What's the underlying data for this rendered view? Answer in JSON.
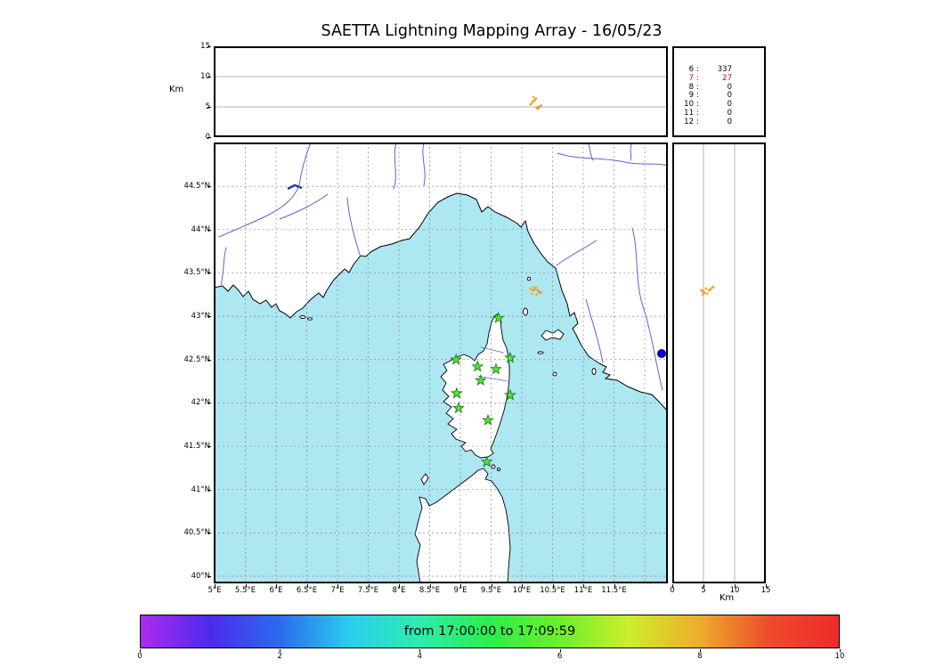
{
  "title": "SAETTA Lightning Mapping Array - 16/05/23",
  "colors": {
    "sea": "#ace7f2",
    "land": "#ffffff",
    "station_fill": "#55e62e",
    "station_edge": "#157015",
    "river": "#6b5bd2",
    "lake": "#0000bb",
    "grid": "#8a8a8a",
    "highlight": "#cc0000"
  },
  "top_panel": {
    "ylabel": "Km",
    "yticks": [
      {
        "label": "0",
        "value": 0
      },
      {
        "label": "5",
        "value": 5
      },
      {
        "label": "10",
        "value": 10
      },
      {
        "label": "15",
        "value": 15
      }
    ]
  },
  "station_counts": {
    "rows": [
      {
        "label": "6",
        "value": "337",
        "highlight": false
      },
      {
        "label": "7",
        "value": "27",
        "highlight": true
      },
      {
        "label": "8",
        "value": "0",
        "highlight": false
      },
      {
        "label": "9",
        "value": "0",
        "highlight": false
      },
      {
        "label": "10",
        "value": "0",
        "highlight": false
      },
      {
        "label": "11",
        "value": "0",
        "highlight": false
      },
      {
        "label": "12",
        "value": "0",
        "highlight": false
      }
    ]
  },
  "map_panel": {
    "lat_ticks": [
      {
        "label": "44.5°N",
        "value": 44.5
      },
      {
        "label": "44°N",
        "value": 44
      },
      {
        "label": "43.5°N",
        "value": 43.5
      },
      {
        "label": "43°N",
        "value": 43
      },
      {
        "label": "42.5°N",
        "value": 42.5
      },
      {
        "label": "42°N",
        "value": 42
      },
      {
        "label": "41.5°N",
        "value": 41.5
      },
      {
        "label": "41°N",
        "value": 41
      },
      {
        "label": "40.5°N",
        "value": 40.5
      },
      {
        "label": "40°N",
        "value": 40
      }
    ],
    "lon_ticks": [
      {
        "label": "5°E",
        "value": 5
      },
      {
        "label": "5.5°E",
        "value": 5.5
      },
      {
        "label": "6°E",
        "value": 6
      },
      {
        "label": "6.5°E",
        "value": 6.5
      },
      {
        "label": "7°E",
        "value": 7
      },
      {
        "label": "7.5°E",
        "value": 7.5
      },
      {
        "label": "8°E",
        "value": 8
      },
      {
        "label": "8.5°E",
        "value": 8.5
      },
      {
        "label": "9°E",
        "value": 9
      },
      {
        "label": "9.5°E",
        "value": 9.5
      },
      {
        "label": "10°E",
        "value": 10
      },
      {
        "label": "10.5°E",
        "value": 10.5
      },
      {
        "label": "11°E",
        "value": 11
      },
      {
        "label": "11.5°E",
        "value": 11.5
      }
    ]
  },
  "right_panel": {
    "xlabel": "Km",
    "xticks": [
      {
        "label": "0",
        "value": 0
      },
      {
        "label": "5",
        "value": 5
      },
      {
        "label": "10",
        "value": 10
      },
      {
        "label": "15",
        "value": 15
      }
    ]
  },
  "colorbar": {
    "label": "from 17:00:00 to 17:09:59",
    "ticks": [
      {
        "label": "0",
        "value": 0
      },
      {
        "label": "2",
        "value": 2
      },
      {
        "label": "4",
        "value": 4
      },
      {
        "label": "6",
        "value": 6
      },
      {
        "label": "8",
        "value": 8
      },
      {
        "label": "10",
        "value": 10
      }
    ]
  },
  "chart_data": {
    "type": "scatter",
    "title": "SAETTA Lightning Mapping Array - 16/05/23",
    "panels": [
      {
        "name": "altitude_vs_longitude",
        "xlim": [
          5,
          12.4
        ],
        "ylim": [
          0,
          15
        ],
        "ylabel": "Km",
        "grid": "horizontal lines at 5 and 10 km"
      },
      {
        "name": "map_latitude_vs_longitude",
        "xlim": [
          5,
          12.4
        ],
        "ylim": [
          40,
          45.1
        ],
        "grid": "dashed every 0.5 degree"
      },
      {
        "name": "altitude_vs_latitude",
        "xlim": [
          0,
          15
        ],
        "ylim": [
          40,
          45.1
        ],
        "xlabel": "Km"
      },
      {
        "name": "station_source_counts",
        "type": "table"
      },
      {
        "name": "time_colorbar",
        "range_minutes": [
          0,
          10
        ],
        "label": "from 17:00:00 to 17:09:59"
      }
    ],
    "lightning_sources": [
      {
        "lon": 10.14,
        "lat": 43.32,
        "alt_km": 5.4,
        "t_min": 8.0
      },
      {
        "lon": 10.18,
        "lat": 43.3,
        "alt_km": 5.9,
        "t_min": 8.2
      },
      {
        "lon": 10.23,
        "lat": 43.33,
        "alt_km": 6.4,
        "t_min": 8.1
      },
      {
        "lon": 10.28,
        "lat": 43.28,
        "alt_km": 5.0,
        "t_min": 8.4
      },
      {
        "lon": 10.16,
        "lat": 43.26,
        "alt_km": 5.6,
        "t_min": 7.9
      },
      {
        "lon": 10.21,
        "lat": 43.31,
        "alt_km": 6.1,
        "t_min": 8.1
      },
      {
        "lon": 10.26,
        "lat": 43.3,
        "alt_km": 4.7,
        "t_min": 8.3
      },
      {
        "lon": 10.19,
        "lat": 43.34,
        "alt_km": 6.6,
        "t_min": 7.9
      },
      {
        "lon": 10.31,
        "lat": 43.27,
        "alt_km": 5.2,
        "t_min": 8.2
      },
      {
        "lon": 10.24,
        "lat": 43.25,
        "alt_km": 4.9,
        "t_min": 8.0
      }
    ],
    "stations_lon_lat": [
      [
        9.62,
        42.98
      ],
      [
        8.93,
        42.5
      ],
      [
        9.28,
        42.42
      ],
      [
        9.58,
        42.39
      ],
      [
        9.81,
        42.52
      ],
      [
        9.33,
        42.26
      ],
      [
        8.94,
        42.11
      ],
      [
        9.81,
        42.09
      ],
      [
        8.97,
        41.94
      ],
      [
        9.45,
        41.8
      ],
      [
        9.43,
        41.32
      ]
    ],
    "station_counts": [
      [
        6,
        337
      ],
      [
        7,
        27
      ],
      [
        8,
        0
      ],
      [
        9,
        0
      ],
      [
        10,
        0
      ],
      [
        11,
        0
      ],
      [
        12,
        0
      ]
    ]
  }
}
